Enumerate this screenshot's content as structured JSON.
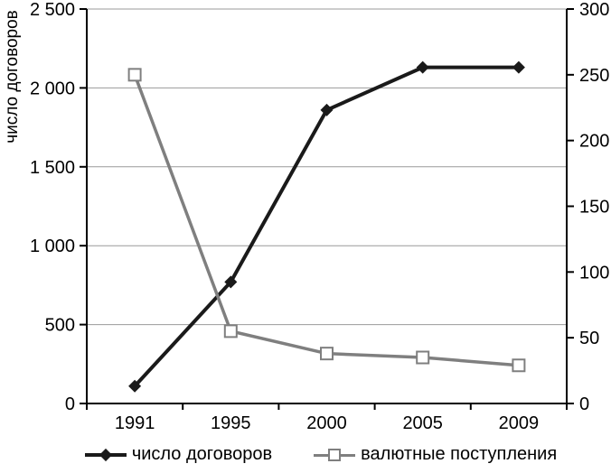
{
  "chart_data": {
    "type": "line",
    "categories": [
      "1991",
      "1995",
      "2000",
      "2005",
      "2009"
    ],
    "series": [
      {
        "name": "число договоров",
        "axis": "left",
        "values": [
          110,
          770,
          1860,
          2130,
          2130
        ],
        "color": "#1a1a1a",
        "marker": "diamond",
        "line_width": 4
      },
      {
        "name": "валютные поступления",
        "axis": "right",
        "values": [
          250,
          55,
          38,
          35,
          29
        ],
        "color": "#7f7f7f",
        "marker": "open-square",
        "line_width": 3.5
      }
    ],
    "left_axis": {
      "title": "число договоров",
      "min": 0,
      "max": 2500,
      "tick_step": 500,
      "tick_labels": [
        "0",
        "500",
        "1 000",
        "1 500",
        "2 000",
        "2 500"
      ]
    },
    "right_axis": {
      "min": 0,
      "max": 300,
      "tick_step": 50,
      "tick_labels": [
        "0",
        "50",
        "100",
        "150",
        "200",
        "250",
        "300"
      ]
    },
    "xlabel": "",
    "title": "",
    "grid": "horizontal gridlines at every 500 of left axis",
    "grid_color": "#999999",
    "axis_color": "#000000",
    "legend_position": "bottom"
  },
  "legend": {
    "items": [
      {
        "label": "число договоров"
      },
      {
        "label": "валютные поступления"
      }
    ]
  }
}
